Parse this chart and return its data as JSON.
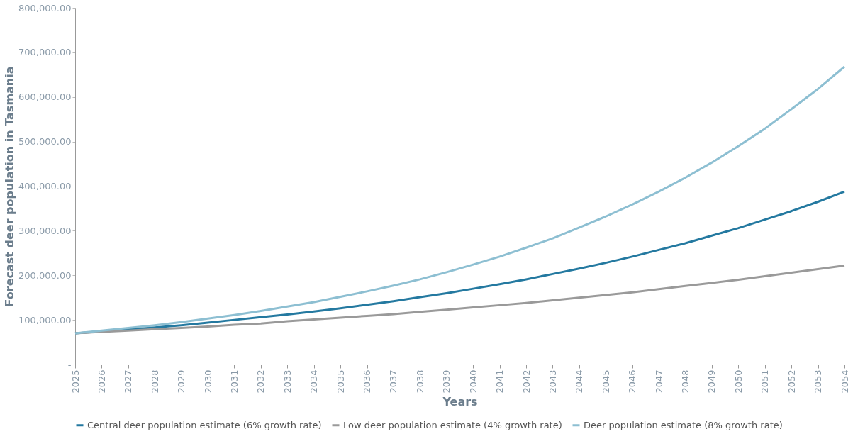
{
  "chart_data": {
    "type": "line",
    "xlabel": "Years",
    "ylabel": "Forecast deer population in Tasmania",
    "categories": [
      "2025",
      "2026",
      "2027",
      "2028",
      "2029",
      "2030",
      "2031",
      "2032",
      "2033",
      "2034",
      "2035",
      "2036",
      "2037",
      "2038",
      "2039",
      "2040",
      "2041",
      "2042",
      "2043",
      "2044",
      "2045",
      "2046",
      "2047",
      "2048",
      "2049",
      "2050",
      "2051",
      "2052",
      "2053",
      "2054"
    ],
    "series": [
      {
        "name": "Central deer population estimate (6% growth rate)",
        "color": "#2479a0",
        "values": [
          70000,
          74000,
          79000,
          83000,
          88000,
          94000,
          100000,
          106000,
          112000,
          119000,
          126000,
          134000,
          142000,
          151000,
          160000,
          170000,
          180000,
          191000,
          203000,
          215000,
          228000,
          242000,
          257000,
          272000,
          289000,
          306000,
          325000,
          344000,
          365000,
          388000
        ]
      },
      {
        "name": "Low deer population estimate (4% growth rate)",
        "color": "#9a9a9a",
        "values": [
          70000,
          73000,
          76000,
          79000,
          82000,
          85000,
          89000,
          92000,
          97000,
          101000,
          105000,
          109000,
          113000,
          118000,
          123000,
          128000,
          133000,
          138000,
          144000,
          150000,
          156000,
          162000,
          169000,
          176000,
          183000,
          190000,
          198000,
          206000,
          214000,
          222000
        ]
      },
      {
        "name": "Deer  population estimate (8% growth rate)",
        "color": "#8dbfd2",
        "values": [
          70000,
          76000,
          82000,
          88000,
          95000,
          103000,
          111000,
          120000,
          130000,
          140000,
          152000,
          164000,
          177000,
          191000,
          207000,
          224000,
          242000,
          262000,
          283000,
          307000,
          332000,
          359000,
          388000,
          419000,
          453000,
          490000,
          529000,
          573000,
          618000,
          668000
        ]
      }
    ],
    "ylim": [
      0,
      800000
    ],
    "yticks": [
      {
        "value": 0,
        "label": "-"
      },
      {
        "value": 100000,
        "label": "100,000.00"
      },
      {
        "value": 200000,
        "label": "200,000.00"
      },
      {
        "value": 300000,
        "label": "300,000.00"
      },
      {
        "value": 400000,
        "label": "400,000.00"
      },
      {
        "value": 500000,
        "label": "500,000.00"
      },
      {
        "value": 600000,
        "label": "600,000.00"
      },
      {
        "value": 700000,
        "label": "700,000.00"
      },
      {
        "value": 800000,
        "label": "800,000.00"
      }
    ],
    "grid": false,
    "legend": "bottom",
    "marker": "none",
    "line_style": "solid"
  }
}
